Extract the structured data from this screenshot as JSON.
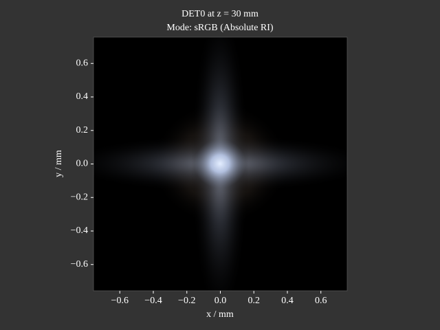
{
  "chart_data": {
    "type": "image",
    "title": "DET0 at z = 30 mm",
    "subtitle": "Mode: sRGB (Absolute RI)",
    "xlabel": "x / mm",
    "ylabel": "y / mm",
    "xlim": [
      -0.757,
      0.757
    ],
    "ylim": [
      -0.757,
      0.757
    ],
    "xticks": [
      {
        "value": -0.6,
        "label": "−0.6"
      },
      {
        "value": -0.4,
        "label": "−0.4"
      },
      {
        "value": -0.2,
        "label": "−0.2"
      },
      {
        "value": 0,
        "label": "0.0"
      },
      0.2,
      0.4,
      0.6
    ],
    "yticks": [
      {
        "value": -0.6,
        "label": "−0.6"
      },
      {
        "value": -0.4,
        "label": "−0.4"
      },
      {
        "value": -0.2,
        "label": "−0.2"
      },
      {
        "value": 0,
        "label": "0.0"
      },
      0.2,
      0.4,
      0.6
    ]
  }
}
